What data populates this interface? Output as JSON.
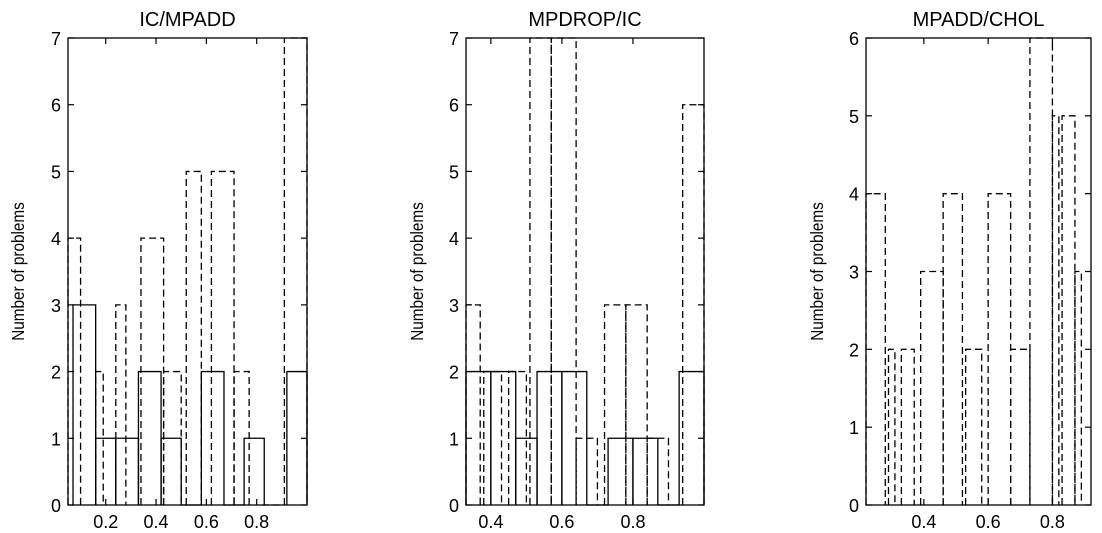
{
  "chart_data": [
    {
      "type": "bar",
      "title": "IC/MPADD",
      "ylabel": "Number of problems",
      "xlabel": "",
      "ylim": [
        0,
        7
      ],
      "xlim": [
        0.05,
        1.0
      ],
      "xticks": [
        0.2,
        0.4,
        0.6,
        0.8
      ],
      "xtick_labels": [
        "0.2",
        "0.4",
        "0.6",
        "0.8"
      ],
      "yticks": [
        0,
        1,
        2,
        3,
        4,
        5,
        6,
        7
      ],
      "series": [
        {
          "style": "dashed",
          "bins": [
            {
              "x0": 0.05,
              "x1": 0.1,
              "value": 4
            },
            {
              "x0": 0.16,
              "x1": 0.19,
              "value": 2
            },
            {
              "x0": 0.24,
              "x1": 0.28,
              "value": 3
            },
            {
              "x0": 0.34,
              "x1": 0.43,
              "value": 4
            },
            {
              "x0": 0.43,
              "x1": 0.5,
              "value": 2
            },
            {
              "x0": 0.52,
              "x1": 0.58,
              "value": 5
            },
            {
              "x0": 0.62,
              "x1": 0.71,
              "value": 5
            },
            {
              "x0": 0.71,
              "x1": 0.77,
              "value": 2
            },
            {
              "x0": 0.82,
              "x1": 0.89,
              "value": 0
            },
            {
              "x0": 0.91,
              "x1": 1.0,
              "value": 7
            }
          ]
        },
        {
          "style": "solid",
          "bins": [
            {
              "x0": 0.07,
              "x1": 0.16,
              "value": 3
            },
            {
              "x0": 0.16,
              "x1": 0.24,
              "value": 1
            },
            {
              "x0": 0.24,
              "x1": 0.33,
              "value": 1
            },
            {
              "x0": 0.33,
              "x1": 0.42,
              "value": 2
            },
            {
              "x0": 0.42,
              "x1": 0.5,
              "value": 1
            },
            {
              "x0": 0.5,
              "x1": 0.58,
              "value": 0
            },
            {
              "x0": 0.58,
              "x1": 0.67,
              "value": 2
            },
            {
              "x0": 0.67,
              "x1": 0.75,
              "value": 0
            },
            {
              "x0": 0.75,
              "x1": 0.83,
              "value": 1
            },
            {
              "x0": 0.92,
              "x1": 1.0,
              "value": 2
            }
          ]
        }
      ]
    },
    {
      "type": "bar",
      "title": "MPDROP/IC",
      "ylabel": "Number of problems",
      "xlabel": "",
      "ylim": [
        0,
        7
      ],
      "xlim": [
        0.33,
        1.0
      ],
      "xticks": [
        0.4,
        0.6,
        0.8
      ],
      "xtick_labels": [
        "0.4",
        "0.6",
        "0.8"
      ],
      "yticks": [
        0,
        1,
        2,
        3,
        4,
        5,
        6,
        7
      ],
      "series": [
        {
          "style": "dashed",
          "bins": [
            {
              "x0": 0.33,
              "x1": 0.37,
              "value": 3
            },
            {
              "x0": 0.38,
              "x1": 0.43,
              "value": 2
            },
            {
              "x0": 0.45,
              "x1": 0.5,
              "value": 2
            },
            {
              "x0": 0.51,
              "x1": 0.57,
              "value": 7
            },
            {
              "x0": 0.57,
              "x1": 0.64,
              "value": 7
            },
            {
              "x0": 0.64,
              "x1": 0.7,
              "value": 1
            },
            {
              "x0": 0.72,
              "x1": 0.78,
              "value": 3
            },
            {
              "x0": 0.78,
              "x1": 0.84,
              "value": 3
            },
            {
              "x0": 0.84,
              "x1": 0.9,
              "value": 1
            },
            {
              "x0": 0.94,
              "x1": 1.0,
              "value": 6
            }
          ]
        },
        {
          "style": "solid",
          "bins": [
            {
              "x0": 0.33,
              "x1": 0.4,
              "value": 2
            },
            {
              "x0": 0.4,
              "x1": 0.47,
              "value": 2
            },
            {
              "x0": 0.47,
              "x1": 0.53,
              "value": 1
            },
            {
              "x0": 0.53,
              "x1": 0.6,
              "value": 2
            },
            {
              "x0": 0.6,
              "x1": 0.67,
              "value": 2
            },
            {
              "x0": 0.67,
              "x1": 0.73,
              "value": 0
            },
            {
              "x0": 0.73,
              "x1": 0.8,
              "value": 1
            },
            {
              "x0": 0.8,
              "x1": 0.87,
              "value": 1
            },
            {
              "x0": 0.87,
              "x1": 0.93,
              "value": 0
            },
            {
              "x0": 0.93,
              "x1": 1.0,
              "value": 2
            }
          ]
        }
      ]
    },
    {
      "type": "bar",
      "title": "MPADD/CHOL",
      "ylabel": "Number of problems",
      "xlabel": "",
      "ylim": [
        0,
        6
      ],
      "xlim": [
        0.22,
        0.92
      ],
      "xticks": [
        0.4,
        0.6,
        0.8
      ],
      "xtick_labels": [
        "0.4",
        "0.6",
        "0.8"
      ],
      "yticks": [
        0,
        1,
        2,
        3,
        4,
        5,
        6
      ],
      "series": [
        {
          "style": "dashed",
          "bins": [
            {
              "x0": 0.22,
              "x1": 0.28,
              "value": 4
            },
            {
              "x0": 0.29,
              "x1": 0.31,
              "value": 2
            },
            {
              "x0": 0.33,
              "x1": 0.37,
              "value": 2
            },
            {
              "x0": 0.39,
              "x1": 0.46,
              "value": 3
            },
            {
              "x0": 0.46,
              "x1": 0.52,
              "value": 4
            },
            {
              "x0": 0.53,
              "x1": 0.58,
              "value": 2
            },
            {
              "x0": 0.6,
              "x1": 0.67,
              "value": 4
            },
            {
              "x0": 0.67,
              "x1": 0.73,
              "value": 2
            },
            {
              "x0": 0.73,
              "x1": 0.8,
              "value": 6
            },
            {
              "x0": 0.8,
              "x1": 0.82,
              "value": 5
            },
            {
              "x0": 0.83,
              "x1": 0.87,
              "value": 5
            },
            {
              "x0": 0.87,
              "x1": 0.89,
              "value": 3
            }
          ]
        }
      ]
    }
  ]
}
